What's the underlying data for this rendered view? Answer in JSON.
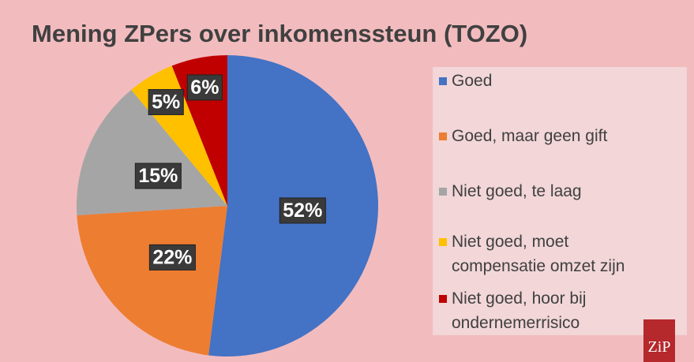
{
  "chart_data": {
    "type": "pie",
    "title": "Mening ZPers over inkomenssteun (TOZO)",
    "categories": [
      "Goed",
      "Goed, maar geen gift",
      "Niet goed, te laag",
      "Niet goed, moet compensatie omzet zijn",
      "Niet goed, hoor bij ondernemerrisico"
    ],
    "values": [
      52,
      22,
      15,
      5,
      6
    ],
    "value_labels": [
      "52%",
      "22%",
      "15%",
      "5%",
      "6%"
    ],
    "colors": [
      "#4472c4",
      "#ed7d31",
      "#a5a5a5",
      "#ffc000",
      "#c00000"
    ],
    "legend": "right"
  },
  "logo": "ZiP"
}
